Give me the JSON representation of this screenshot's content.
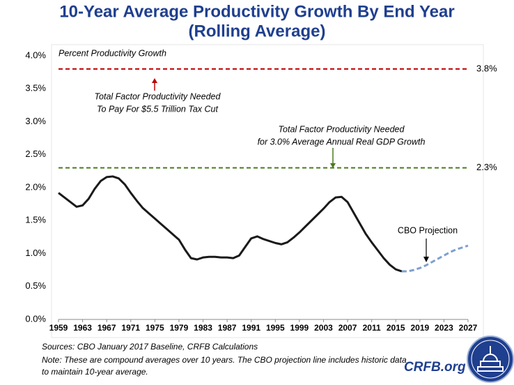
{
  "chart_data": {
    "type": "line",
    "title": [
      "10-Year Average Productivity Growth By End Year",
      "(Rolling Average)"
    ],
    "y_label": "Percent Productivity Growth",
    "x": [
      1959,
      1960,
      1961,
      1962,
      1963,
      1964,
      1965,
      1966,
      1967,
      1968,
      1969,
      1970,
      1971,
      1972,
      1973,
      1974,
      1975,
      1976,
      1977,
      1978,
      1979,
      1980,
      1981,
      1982,
      1983,
      1984,
      1985,
      1986,
      1987,
      1988,
      1989,
      1990,
      1991,
      1992,
      1993,
      1994,
      1995,
      1996,
      1997,
      1998,
      1999,
      2000,
      2001,
      2002,
      2003,
      2004,
      2005,
      2006,
      2007,
      2008,
      2009,
      2010,
      2011,
      2012,
      2013,
      2014,
      2015,
      2016,
      2017,
      2018,
      2019,
      2020,
      2021,
      2022,
      2023,
      2024,
      2025,
      2026,
      2027
    ],
    "series": [
      {
        "color": "#1a1a1a",
        "dashed": false,
        "values": [
          1.92,
          1.85,
          1.78,
          1.71,
          1.73,
          1.83,
          1.98,
          2.1,
          2.16,
          2.17,
          2.14,
          2.05,
          1.92,
          1.8,
          1.69,
          1.61,
          1.53,
          1.45,
          1.37,
          1.29,
          1.21,
          1.06,
          0.93,
          0.91,
          0.94,
          0.95,
          0.95,
          0.94,
          0.94,
          0.93,
          0.97,
          1.1,
          1.23,
          1.26,
          1.22,
          1.19,
          1.16,
          1.14,
          1.17,
          1.24,
          1.32,
          1.41,
          1.5,
          1.59,
          1.68,
          1.78,
          1.85,
          1.86,
          1.78,
          1.62,
          1.46,
          1.3,
          1.17,
          1.05,
          0.93,
          0.83,
          0.76,
          0.73,
          null,
          null,
          null,
          null,
          null,
          null,
          null,
          null,
          null,
          null,
          null
        ]
      },
      {
        "name": "CBO Projection",
        "color": "#7f9fcf",
        "dashed": true,
        "values": [
          null,
          null,
          null,
          null,
          null,
          null,
          null,
          null,
          null,
          null,
          null,
          null,
          null,
          null,
          null,
          null,
          null,
          null,
          null,
          null,
          null,
          null,
          null,
          null,
          null,
          null,
          null,
          null,
          null,
          null,
          null,
          null,
          null,
          null,
          null,
          null,
          null,
          null,
          null,
          null,
          null,
          null,
          null,
          null,
          null,
          null,
          null,
          null,
          null,
          null,
          null,
          null,
          null,
          null,
          null,
          null,
          null,
          0.73,
          0.73,
          0.75,
          0.78,
          0.82,
          0.87,
          0.92,
          0.97,
          1.02,
          1.06,
          1.09,
          1.12
        ]
      }
    ],
    "reference_lines": [
      {
        "value": 3.8,
        "label": "3.8%",
        "color": "#c00000",
        "annotation": [
          "Total Factor Productivity Needed",
          "To Pay For $5.5 Trillion Tax Cut"
        ]
      },
      {
        "value": 2.3,
        "label": "2.3%",
        "color": "#4a7a1e",
        "annotation": [
          "Total Factor Productivity Needed",
          "for 3.0% Average Annual Real GDP Growth"
        ]
      }
    ],
    "xlim": [
      1959,
      2027
    ],
    "xticks": [
      1959,
      1963,
      1967,
      1971,
      1975,
      1979,
      1983,
      1987,
      1991,
      1995,
      1999,
      2003,
      2007,
      2011,
      2015,
      2019,
      2023,
      2027
    ],
    "ylim": [
      0,
      4
    ],
    "yticks": [
      {
        "value": 0,
        "label": "0.0%"
      },
      {
        "value": 0.5,
        "label": "0.5%"
      },
      {
        "value": 1,
        "label": "1.0%"
      },
      {
        "value": 1.5,
        "label": "1.5%"
      },
      {
        "value": 2,
        "label": "2.0%"
      },
      {
        "value": 2.5,
        "label": "2.5%"
      },
      {
        "value": 3,
        "label": "3.0%"
      },
      {
        "value": 3.5,
        "label": "3.5%"
      },
      {
        "value": 4,
        "label": "4.0%"
      }
    ],
    "grid": false,
    "footer": [
      "Sources: CBO January 2017 Baseline, CRFB Calculations",
      "Note: These are compound averages over 10 years. The CBO projection line includes historic data",
      "to maintain 10-year average."
    ],
    "brand": "CRFB.org"
  }
}
